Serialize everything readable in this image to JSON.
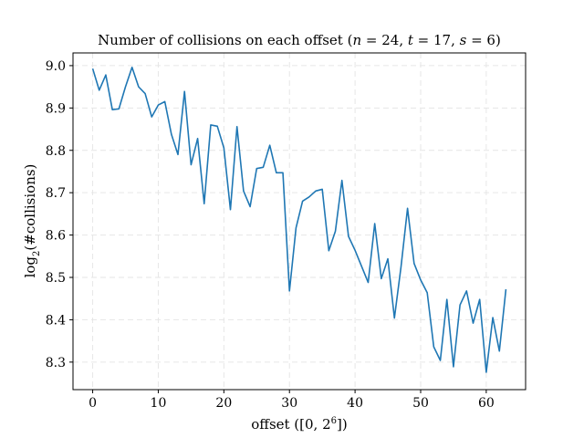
{
  "chart_data": {
    "type": "line",
    "title": "Number of collisions on each offset (n = 24, t = 17, s = 6)",
    "xlabel": "offset ([0, 2^6])",
    "ylabel": "log2(#collisions)",
    "xlim": [
      -3,
      66
    ],
    "ylim": [
      8.235,
      9.03
    ],
    "xticks": [
      0,
      10,
      20,
      30,
      40,
      50,
      60
    ],
    "yticks": [
      8.3,
      8.4,
      8.5,
      8.6,
      8.7,
      8.8,
      8.9,
      9.0
    ],
    "xtick_labels": [
      "0",
      "10",
      "20",
      "30",
      "40",
      "50",
      "60"
    ],
    "ytick_labels": [
      "8.3",
      "8.4",
      "8.5",
      "8.6",
      "8.7",
      "8.8",
      "8.9",
      "9.0"
    ],
    "grid": true,
    "color": "#1f77b4",
    "x": [
      0,
      1,
      2,
      3,
      4,
      5,
      6,
      7,
      8,
      9,
      10,
      11,
      12,
      13,
      14,
      15,
      16,
      17,
      18,
      19,
      20,
      21,
      22,
      23,
      24,
      25,
      26,
      27,
      28,
      29,
      30,
      31,
      32,
      33,
      34,
      35,
      36,
      37,
      38,
      39,
      40,
      41,
      42,
      43,
      44,
      45,
      46,
      47,
      48,
      49,
      50,
      51,
      52,
      53,
      54,
      55,
      56,
      57,
      58,
      59,
      60,
      61,
      62,
      63
    ],
    "y": [
      8.993,
      8.942,
      8.978,
      8.896,
      8.898,
      8.95,
      8.996,
      8.95,
      8.934,
      8.879,
      8.907,
      8.915,
      8.838,
      8.79,
      8.939,
      8.766,
      8.828,
      8.674,
      8.86,
      8.857,
      8.806,
      8.66,
      8.856,
      8.704,
      8.667,
      8.757,
      8.76,
      8.812,
      8.747,
      8.747,
      8.468,
      8.617,
      8.68,
      8.69,
      8.704,
      8.708,
      8.563,
      8.609,
      8.729,
      8.597,
      8.564,
      8.526,
      8.488,
      8.627,
      8.497,
      8.544,
      8.404,
      8.524,
      8.663,
      8.533,
      8.494,
      8.464,
      8.336,
      8.304,
      8.448,
      8.289,
      8.435,
      8.468,
      8.392,
      8.448,
      8.276,
      8.405,
      8.326,
      8.472
    ]
  }
}
